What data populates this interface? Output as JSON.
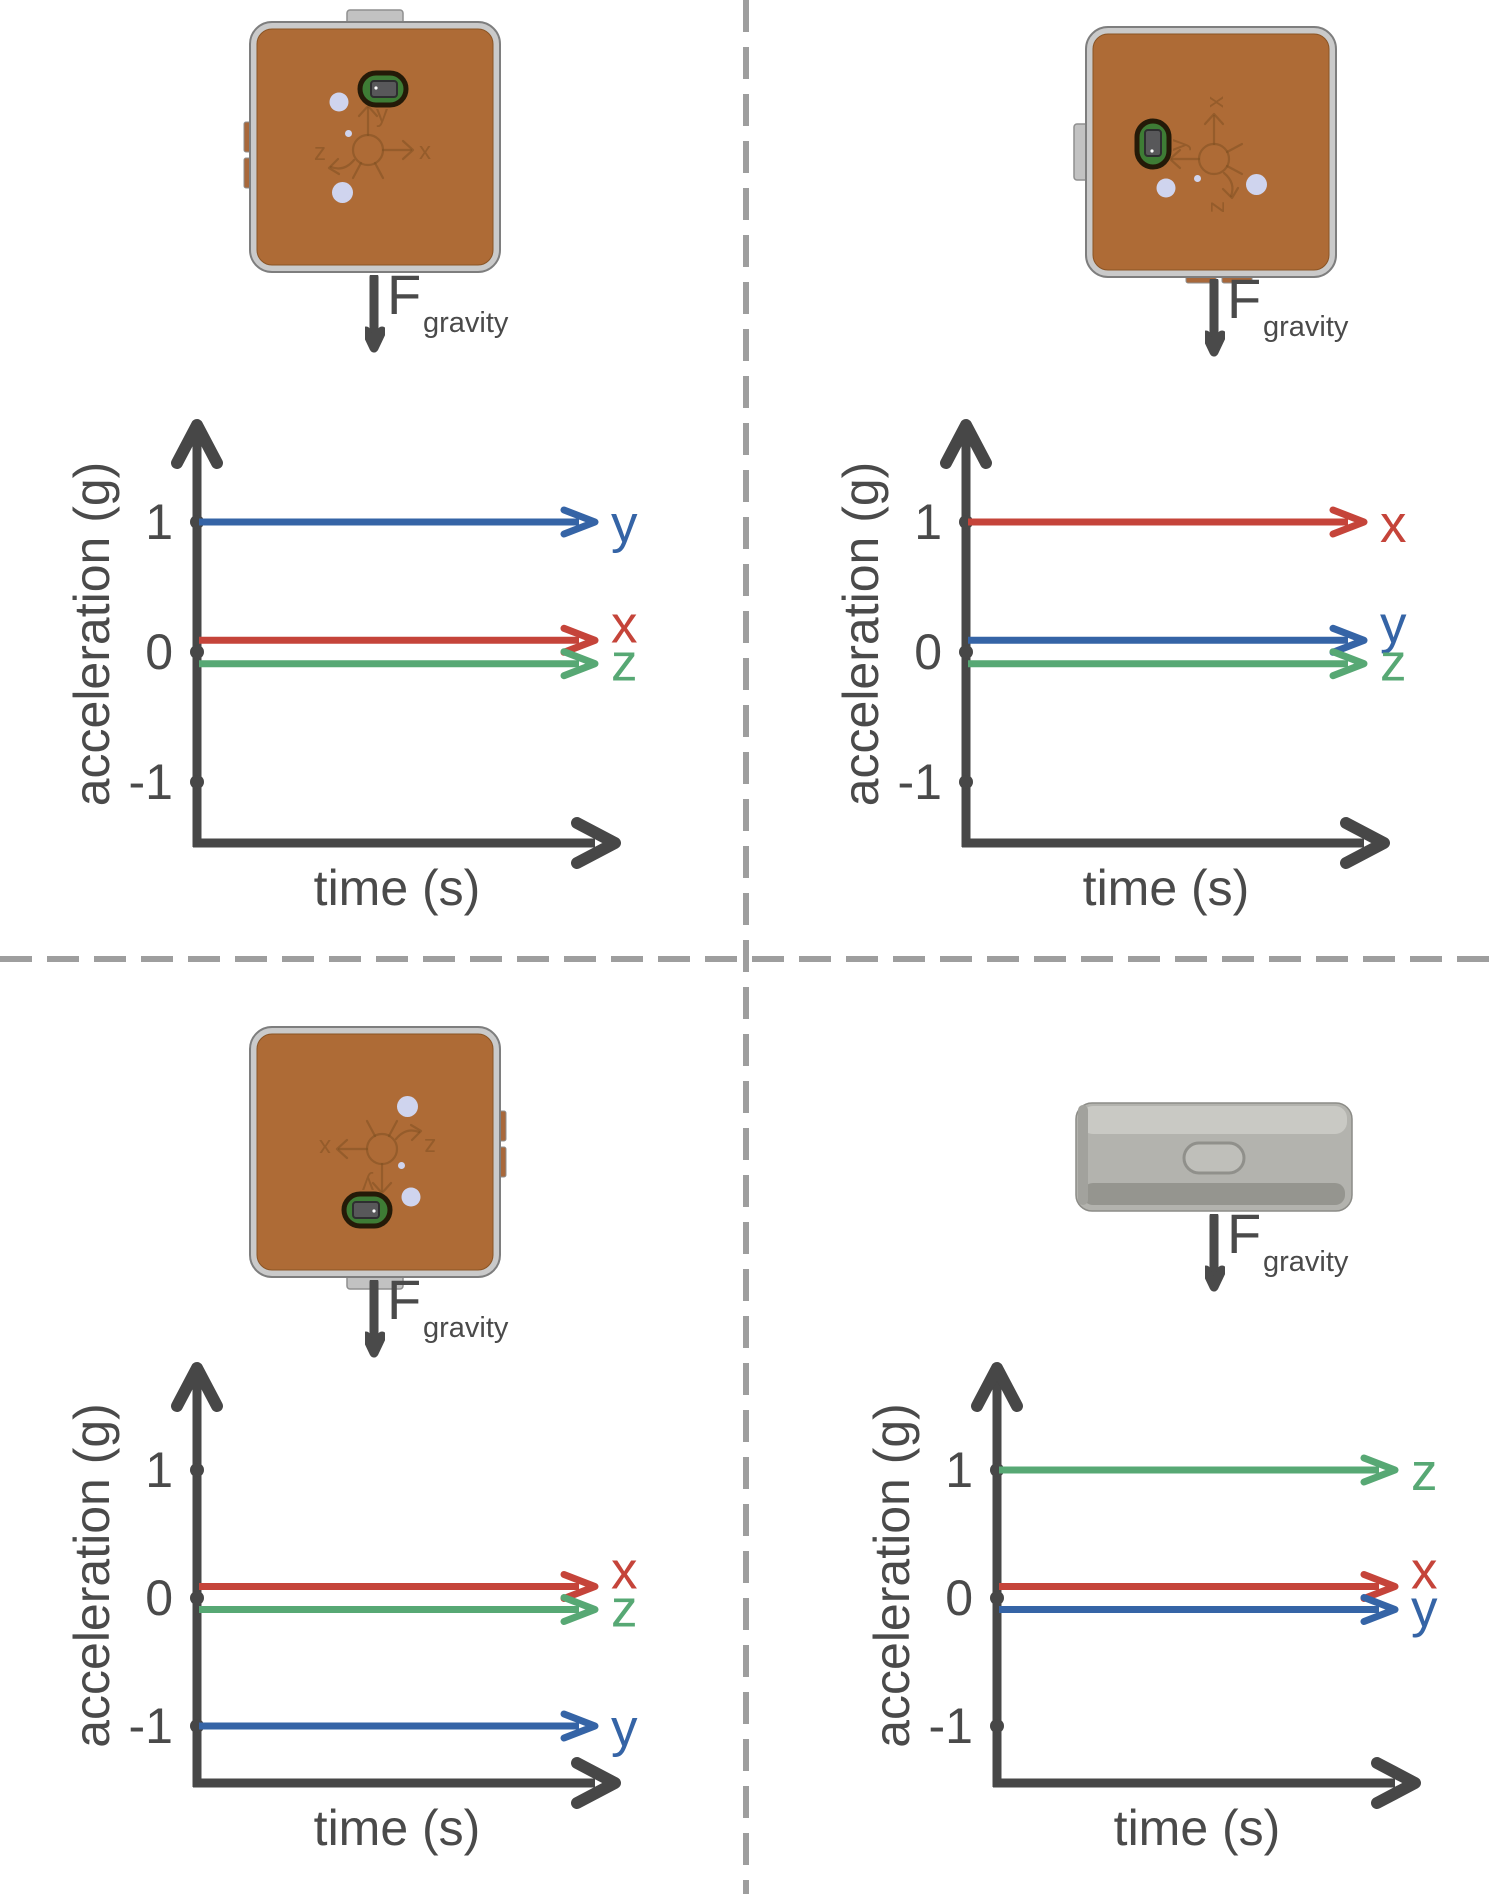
{
  "colors": {
    "x_series": "#C5443A",
    "y_series": "#3564A6",
    "z_series": "#57A874",
    "axis": "#474747",
    "text": "#4A4A4A",
    "divider": "#9E9E9E",
    "board_face": "#AE6B36",
    "board_frame": "#CACACA",
    "port_green": "#3E7C35",
    "button": "#CFD4EE",
    "enclosure": "#B3B3AE"
  },
  "force": {
    "f": "F",
    "sub": "gravity"
  },
  "devices": {
    "board": {
      "engraving": {
        "up": "y",
        "right": "x",
        "curl": "z"
      }
    },
    "quadrant_devices": [
      {
        "type": "pcb-board-top-view",
        "rotation_deg": 0
      },
      {
        "type": "pcb-board-top-view",
        "rotation_deg": -90
      },
      {
        "type": "pcb-board-top-view",
        "rotation_deg": 180
      },
      {
        "type": "enclosure-side-view",
        "rotation_deg": 0
      }
    ]
  },
  "chart_data": [
    {
      "type": "line",
      "position": "top-left",
      "xlabel": "time (s)",
      "ylabel": "acceleration (g)",
      "yticks": [
        {
          "label": "1",
          "value": 1
        },
        {
          "label": "0",
          "value": 0
        },
        {
          "label": "-1",
          "value": -1
        }
      ],
      "ylim": [
        -1.7,
        1.7
      ],
      "grid": false,
      "series": [
        {
          "name": "y",
          "value": 1,
          "plot_offset_g": 0,
          "color": "#3564A6"
        },
        {
          "name": "x",
          "value": 0,
          "plot_offset_g": 0.09,
          "color": "#C5443A"
        },
        {
          "name": "z",
          "value": 0,
          "plot_offset_g": -0.09,
          "color": "#57A874"
        }
      ]
    },
    {
      "type": "line",
      "position": "top-right",
      "xlabel": "time (s)",
      "ylabel": "acceleration (g)",
      "yticks": [
        {
          "label": "1",
          "value": 1
        },
        {
          "label": "0",
          "value": 0
        },
        {
          "label": "-1",
          "value": -1
        }
      ],
      "ylim": [
        -1.7,
        1.7
      ],
      "grid": false,
      "series": [
        {
          "name": "x",
          "value": 1,
          "plot_offset_g": 0,
          "color": "#C5443A"
        },
        {
          "name": "y",
          "value": 0,
          "plot_offset_g": 0.09,
          "color": "#3564A6"
        },
        {
          "name": "z",
          "value": 0,
          "plot_offset_g": -0.09,
          "color": "#57A874"
        }
      ]
    },
    {
      "type": "line",
      "position": "bottom-left",
      "xlabel": "time (s)",
      "ylabel": "acceleration (g)",
      "yticks": [
        {
          "label": "1",
          "value": 1
        },
        {
          "label": "0",
          "value": 0
        },
        {
          "label": "-1",
          "value": -1
        }
      ],
      "ylim": [
        -1.7,
        1.7
      ],
      "grid": false,
      "series": [
        {
          "name": "x",
          "value": 0,
          "plot_offset_g": 0.09,
          "color": "#C5443A"
        },
        {
          "name": "z",
          "value": 0,
          "plot_offset_g": -0.09,
          "color": "#57A874"
        },
        {
          "name": "y",
          "value": -1,
          "plot_offset_g": 0,
          "color": "#3564A6"
        }
      ]
    },
    {
      "type": "line",
      "position": "bottom-right",
      "xlabel": "time (s)",
      "ylabel": "acceleration (g)",
      "yticks": [
        {
          "label": "1",
          "value": 1
        },
        {
          "label": "0",
          "value": 0
        },
        {
          "label": "-1",
          "value": -1
        }
      ],
      "ylim": [
        -1.7,
        1.7
      ],
      "grid": false,
      "series": [
        {
          "name": "z",
          "value": 1,
          "plot_offset_g": 0,
          "color": "#57A874"
        },
        {
          "name": "x",
          "value": 0,
          "plot_offset_g": 0.09,
          "color": "#C5443A"
        },
        {
          "name": "y",
          "value": 0,
          "plot_offset_g": -0.09,
          "color": "#3564A6"
        }
      ]
    }
  ]
}
